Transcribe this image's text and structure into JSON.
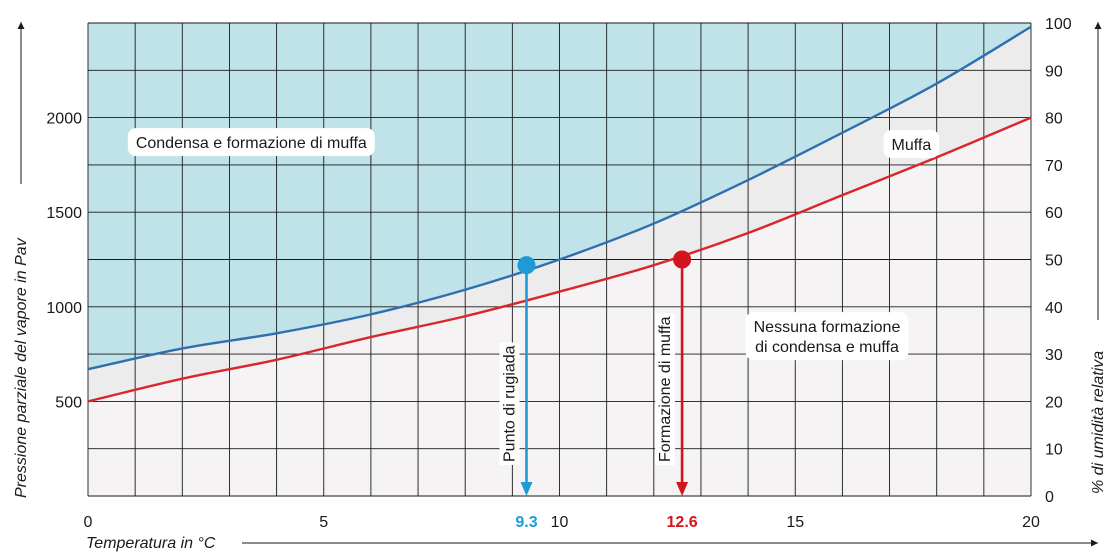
{
  "chart_data": {
    "type": "line",
    "title": "",
    "xlabel": "Temperatura in °C",
    "ylabel": "Pressione parziale del vapore in Pav",
    "y2label": "% di umidità relativa",
    "xlim": [
      0,
      20
    ],
    "ylim": [
      0,
      2500
    ],
    "y2lim": [
      0,
      100
    ],
    "grid": true,
    "x_ticks": [
      0,
      5,
      10,
      15,
      20
    ],
    "y_ticks": [
      500,
      1000,
      1500,
      2000
    ],
    "y2_ticks": [
      0,
      10,
      20,
      30,
      40,
      50,
      60,
      70,
      80,
      90,
      100
    ],
    "series": [
      {
        "name": "",
        "color": "#2f6fb0",
        "x": [
          0,
          2,
          4,
          6,
          8,
          10,
          12,
          14,
          16,
          18,
          20
        ],
        "y": [
          670,
          780,
          860,
          960,
          1090,
          1250,
          1440,
          1670,
          1920,
          2180,
          2480
        ]
      },
      {
        "name": "",
        "color": "#d9262c",
        "x": [
          0,
          2,
          4,
          6,
          8,
          10,
          12,
          14,
          16,
          18,
          20
        ],
        "y": [
          500,
          620,
          720,
          840,
          950,
          1080,
          1220,
          1390,
          1590,
          1790,
          2000
        ]
      }
    ],
    "regions": [
      {
        "label": "Condensa e formazione di muffa",
        "fill": "#bfe3e8",
        "x": 3.4,
        "y": 1860
      },
      {
        "label": "Muffa",
        "fill": "#ececec",
        "x": 17.4,
        "y": 1850
      },
      {
        "label": "Nessuna formazione",
        "label2": "di condensa e muffa",
        "fill": "#f6f3f4",
        "x": 18.6,
        "y": 750
      }
    ],
    "markers": [
      {
        "x": 9.3,
        "y": 1220,
        "value_label": "9.3",
        "arrow_label": "Punto di rugiada",
        "color": "#1e9ad6"
      },
      {
        "x": 12.6,
        "y": 1250,
        "value_label": "12.6",
        "arrow_label": "Formazione di muffa",
        "color": "#d4141d"
      }
    ]
  }
}
